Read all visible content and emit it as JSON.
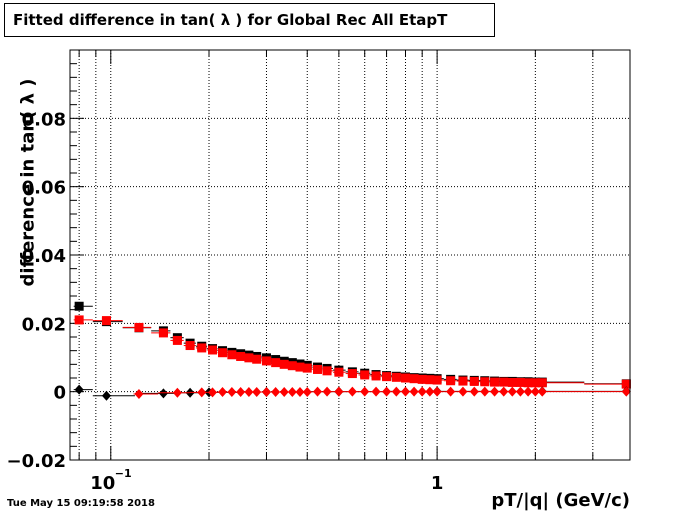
{
  "title": "Fitted difference in tan( λ ) for Global Rec All EtapT",
  "timestamp": "Tue May 15 09:19:58 2018",
  "chart_data": {
    "type": "scatter",
    "title": "Fitted difference in tan( λ ) for Global Rec All EtapT",
    "xlabel": "pT/|q| (GeV/c)",
    "ylabel": "difference in tan( λ )",
    "x_scale": "log",
    "xlim": [
      0.075,
      3.9
    ],
    "ylim": [
      -0.02,
      0.1
    ],
    "grid": true,
    "legend": "none",
    "y_ticks": [
      {
        "value": -0.02,
        "label": "−0.02"
      },
      {
        "value": 0,
        "label": "0"
      },
      {
        "value": 0.02,
        "label": "0.02"
      },
      {
        "value": 0.04,
        "label": "0.04"
      },
      {
        "value": 0.06,
        "label": "0.06"
      },
      {
        "value": 0.08,
        "label": "0.08"
      }
    ],
    "x_ticks": [
      {
        "value": 0.1,
        "label": "10",
        "sup": "−1"
      },
      {
        "value": 1,
        "label": "1",
        "sup": ""
      }
    ],
    "series": [
      {
        "color": "#000000",
        "marker": "square",
        "points": [
          [
            0.08,
            0.025
          ],
          [
            0.097,
            0.0205
          ],
          [
            0.122,
            0.0187
          ],
          [
            0.145,
            0.0178
          ],
          [
            0.16,
            0.0158
          ],
          [
            0.175,
            0.0142
          ],
          [
            0.19,
            0.0133
          ],
          [
            0.205,
            0.0126
          ],
          [
            0.22,
            0.012
          ],
          [
            0.235,
            0.0115
          ],
          [
            0.25,
            0.0111
          ],
          [
            0.265,
            0.0107
          ],
          [
            0.28,
            0.0103
          ],
          [
            0.3,
            0.0099
          ],
          [
            0.32,
            0.0094
          ],
          [
            0.34,
            0.0089
          ],
          [
            0.36,
            0.0085
          ],
          [
            0.38,
            0.0081
          ],
          [
            0.4,
            0.0077
          ],
          [
            0.43,
            0.0072
          ],
          [
            0.46,
            0.0068
          ],
          [
            0.5,
            0.0063
          ],
          [
            0.55,
            0.0058
          ],
          [
            0.6,
            0.0054
          ],
          [
            0.65,
            0.005
          ],
          [
            0.7,
            0.0047
          ],
          [
            0.75,
            0.0045
          ],
          [
            0.8,
            0.0043
          ],
          [
            0.85,
            0.0041
          ],
          [
            0.9,
            0.004
          ],
          [
            0.95,
            0.0039
          ],
          [
            1.0,
            0.0038
          ],
          [
            1.1,
            0.0036
          ],
          [
            1.2,
            0.0034
          ],
          [
            1.3,
            0.0033
          ],
          [
            1.4,
            0.0032
          ],
          [
            1.5,
            0.0031
          ],
          [
            1.6,
            0.003
          ],
          [
            1.7,
            0.003
          ],
          [
            1.8,
            0.0029
          ],
          [
            1.9,
            0.0029
          ],
          [
            2.0,
            0.0028
          ],
          [
            2.1,
            0.0028
          ],
          [
            3.8,
            0.0023
          ]
        ]
      },
      {
        "color": "#ff0000",
        "marker": "square",
        "points": [
          [
            0.08,
            0.021
          ],
          [
            0.097,
            0.0208
          ],
          [
            0.122,
            0.0188
          ],
          [
            0.145,
            0.0172
          ],
          [
            0.16,
            0.015
          ],
          [
            0.175,
            0.0135
          ],
          [
            0.19,
            0.0128
          ],
          [
            0.205,
            0.0122
          ],
          [
            0.22,
            0.0114
          ],
          [
            0.235,
            0.0108
          ],
          [
            0.25,
            0.0103
          ],
          [
            0.265,
            0.0099
          ],
          [
            0.28,
            0.0095
          ],
          [
            0.3,
            0.009
          ],
          [
            0.32,
            0.0085
          ],
          [
            0.34,
            0.008
          ],
          [
            0.36,
            0.0076
          ],
          [
            0.38,
            0.0072
          ],
          [
            0.4,
            0.0069
          ],
          [
            0.43,
            0.0065
          ],
          [
            0.46,
            0.0061
          ],
          [
            0.5,
            0.0057
          ],
          [
            0.55,
            0.0053
          ],
          [
            0.6,
            0.0049
          ],
          [
            0.65,
            0.0046
          ],
          [
            0.7,
            0.0044
          ],
          [
            0.75,
            0.0042
          ],
          [
            0.8,
            0.004
          ],
          [
            0.85,
            0.0038
          ],
          [
            0.9,
            0.0036
          ],
          [
            0.95,
            0.0035
          ],
          [
            1.0,
            0.0034
          ],
          [
            1.1,
            0.0032
          ],
          [
            1.2,
            0.0031
          ],
          [
            1.3,
            0.003
          ],
          [
            1.4,
            0.0029
          ],
          [
            1.5,
            0.0028
          ],
          [
            1.6,
            0.0028
          ],
          [
            1.7,
            0.0027
          ],
          [
            1.8,
            0.0027
          ],
          [
            1.9,
            0.0026
          ],
          [
            2.0,
            0.0026
          ],
          [
            2.1,
            0.0026
          ],
          [
            3.8,
            0.0022
          ]
        ]
      },
      {
        "color": "#000000",
        "marker": "diamond",
        "points": [
          [
            0.08,
            0.0006
          ],
          [
            0.097,
            -0.0012
          ],
          [
            0.145,
            -0.0005
          ],
          [
            0.175,
            -0.0003
          ],
          [
            0.2,
            -0.0002
          ],
          [
            0.3,
            -0.0001
          ],
          [
            0.5,
            0.0
          ],
          [
            1.0,
            0.0001
          ],
          [
            2.1,
            0.0001
          ],
          [
            3.8,
            0.0001
          ]
        ]
      },
      {
        "color": "#ff0000",
        "marker": "diamond",
        "points": [
          [
            0.122,
            -0.0007
          ],
          [
            0.16,
            -0.0003
          ],
          [
            0.19,
            -0.0002
          ],
          [
            0.205,
            -0.0002
          ],
          [
            0.22,
            -0.0001
          ],
          [
            0.235,
            -0.0001
          ],
          [
            0.25,
            -0.0001
          ],
          [
            0.265,
            -0.0001
          ],
          [
            0.28,
            -0.0001
          ],
          [
            0.3,
            -0.0001
          ],
          [
            0.32,
            -0.0001
          ],
          [
            0.34,
            -0.0001
          ],
          [
            0.36,
            -0.0001
          ],
          [
            0.38,
            -0.0001
          ],
          [
            0.4,
            -0.0001
          ],
          [
            0.43,
            0.0
          ],
          [
            0.46,
            0.0
          ],
          [
            0.5,
            0.0
          ],
          [
            0.55,
            0.0
          ],
          [
            0.6,
            0.0
          ],
          [
            0.65,
            0.0
          ],
          [
            0.7,
            0.0
          ],
          [
            0.75,
            0.0
          ],
          [
            0.8,
            0.0
          ],
          [
            0.85,
            0.0
          ],
          [
            0.9,
            0.0
          ],
          [
            0.95,
            0.0
          ],
          [
            1.0,
            0.0
          ],
          [
            1.1,
            0.0
          ],
          [
            1.2,
            0.0
          ],
          [
            1.3,
            0.0
          ],
          [
            1.4,
            0.0
          ],
          [
            1.5,
            0.0
          ],
          [
            1.6,
            0.0
          ],
          [
            1.7,
            0.0
          ],
          [
            1.8,
            0.0
          ],
          [
            1.9,
            0.0
          ],
          [
            2.0,
            0.0
          ],
          [
            2.1,
            0.0
          ],
          [
            3.8,
            0.0
          ]
        ]
      }
    ]
  }
}
